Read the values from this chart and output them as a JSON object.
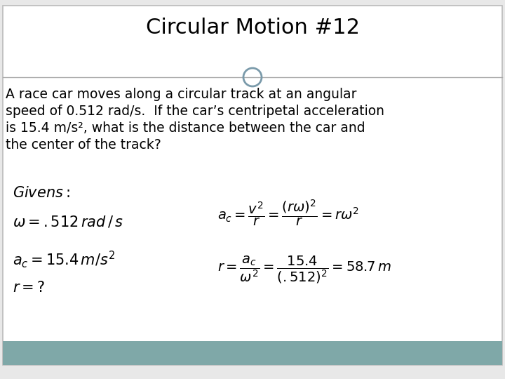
{
  "title": "Circular Motion #12",
  "title_fontsize": 22,
  "bg_color": "#e8e8e8",
  "slide_bg": "#ffffff",
  "footer_color": "#7fa8a8",
  "border_color": "#bbbbbb",
  "divider_color": "#aaaaaa",
  "circle_color": "#7a9aaa",
  "problem_text_lines": [
    "A race car moves along a circular track at an angular",
    "speed of 0.512 rad/s.  If the car’s centripetal acceleration",
    "is 15.4 m/s², what is the distance between the car and",
    "the center of the track?"
  ],
  "problem_fontsize": 13.5
}
